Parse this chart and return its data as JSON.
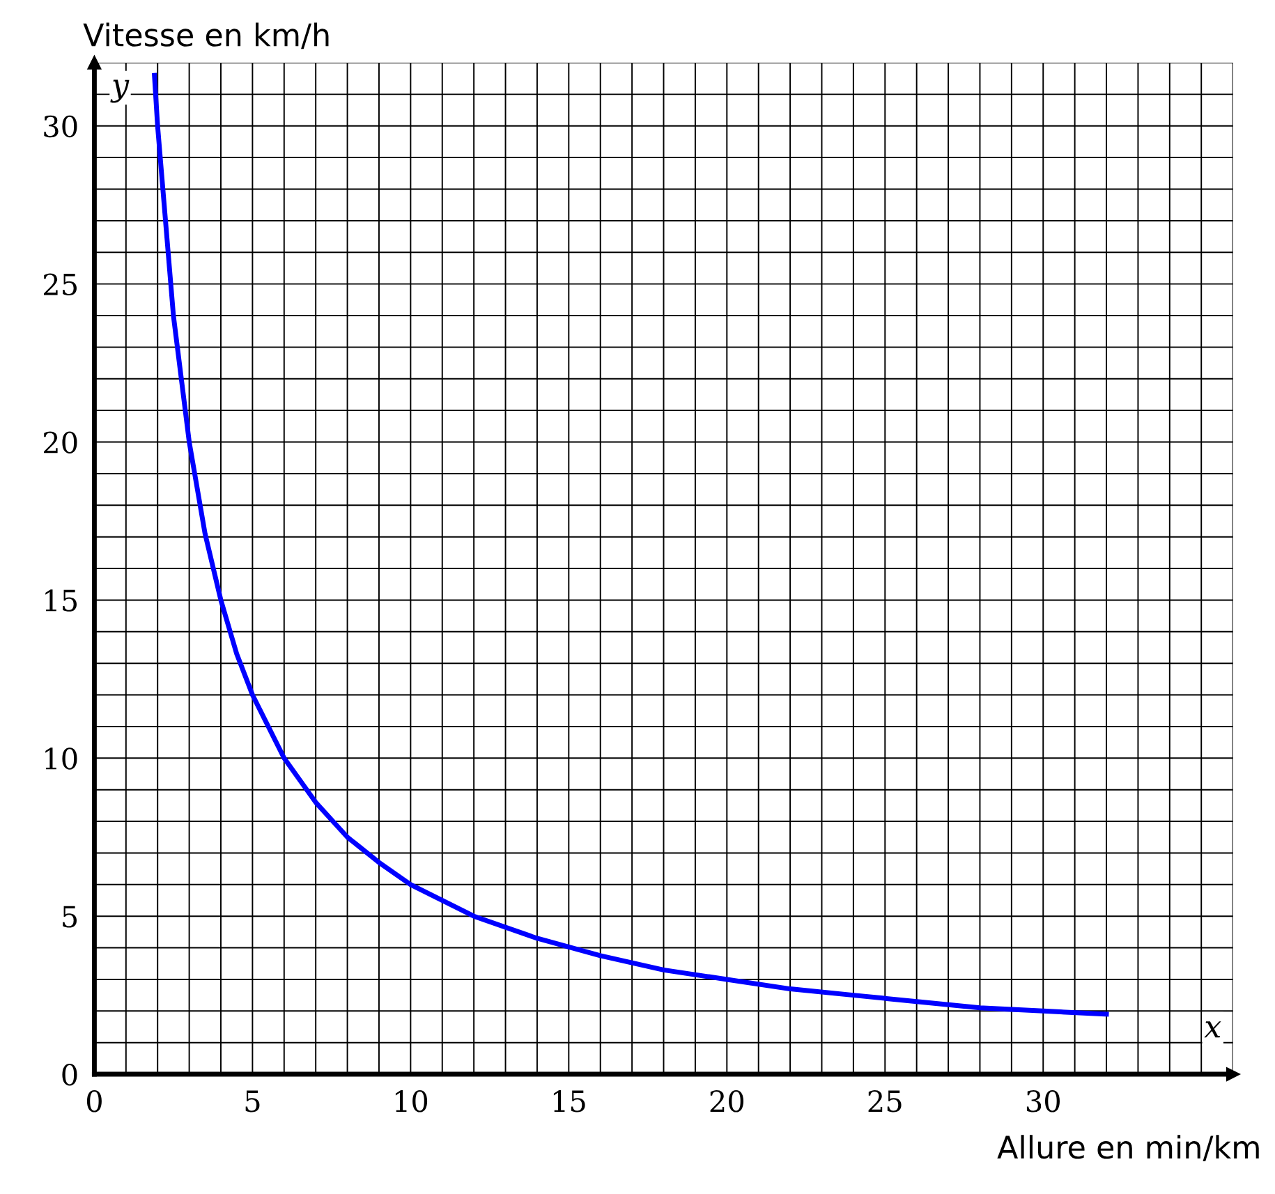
{
  "chart_data": {
    "type": "line",
    "xlabel": "Allure en min/km",
    "ylabel": "Vitesse en km/h",
    "annotations": [
      "x",
      "y"
    ],
    "series": [
      {
        "color": "#0000ff",
        "x": [
          1.9,
          2,
          2.5,
          3,
          3.5,
          4,
          4.5,
          5,
          6,
          7,
          8,
          9,
          10,
          12,
          14,
          16,
          18,
          20,
          22,
          24,
          26,
          28,
          30,
          32
        ],
        "values": [
          31.6,
          30,
          24,
          20,
          17.1,
          15,
          13.3,
          12,
          10,
          8.6,
          7.5,
          6.7,
          6,
          5,
          4.3,
          3.75,
          3.3,
          3,
          2.7,
          2.5,
          2.3,
          2.1,
          2,
          1.9
        ]
      }
    ],
    "xlim": [
      0,
      36
    ],
    "ylim": [
      0,
      32
    ],
    "xticks": [
      0,
      {
        "value": 1,
        "label": null
      },
      {
        "value": 2,
        "label": null
      },
      {
        "value": 3,
        "label": null
      },
      {
        "value": 4,
        "label": null
      },
      5,
      {
        "value": 6,
        "label": null
      },
      {
        "value": 7,
        "label": null
      },
      {
        "value": 8,
        "label": null
      },
      {
        "value": 9,
        "label": null
      },
      10,
      {
        "value": 11,
        "label": null
      },
      {
        "value": 12,
        "label": null
      },
      {
        "value": 13,
        "label": null
      },
      {
        "value": 14,
        "label": null
      },
      15,
      {
        "value": 16,
        "label": null
      },
      {
        "value": 17,
        "label": null
      },
      {
        "value": 18,
        "label": null
      },
      {
        "value": 19,
        "label": null
      },
      20,
      {
        "value": 21,
        "label": null
      },
      {
        "value": 22,
        "label": null
      },
      {
        "value": 23,
        "label": null
      },
      {
        "value": 24,
        "label": null
      },
      25,
      {
        "value": 26,
        "label": null
      },
      {
        "value": 27,
        "label": null
      },
      {
        "value": 28,
        "label": null
      },
      {
        "value": 29,
        "label": null
      },
      30,
      {
        "value": 31,
        "label": null
      },
      {
        "value": 32,
        "label": null
      },
      {
        "value": 33,
        "label": null
      },
      {
        "value": 34,
        "label": null
      },
      {
        "value": 35,
        "label": null
      },
      {
        "value": 36,
        "label": null
      }
    ],
    "yticks": [
      0,
      {
        "value": 1,
        "label": null
      },
      {
        "value": 2,
        "label": null
      },
      {
        "value": 3,
        "label": null
      },
      {
        "value": 4,
        "label": null
      },
      5,
      {
        "value": 6,
        "label": null
      },
      {
        "value": 7,
        "label": null
      },
      {
        "value": 8,
        "label": null
      },
      {
        "value": 9,
        "label": null
      },
      10,
      {
        "value": 11,
        "label": null
      },
      {
        "value": 12,
        "label": null
      },
      {
        "value": 13,
        "label": null
      },
      {
        "value": 14,
        "label": null
      },
      15,
      {
        "value": 16,
        "label": null
      },
      {
        "value": 17,
        "label": null
      },
      {
        "value": 18,
        "label": null
      },
      {
        "value": 19,
        "label": null
      },
      20,
      {
        "value": 21,
        "label": null
      },
      {
        "value": 22,
        "label": null
      },
      {
        "value": 23,
        "label": null
      },
      {
        "value": 24,
        "label": null
      },
      25,
      {
        "value": 26,
        "label": null
      },
      {
        "value": 27,
        "label": null
      },
      {
        "value": 28,
        "label": null
      },
      {
        "value": 29,
        "label": null
      },
      30,
      {
        "value": 31,
        "label": null
      },
      {
        "value": 32,
        "label": null
      }
    ],
    "grid": true,
    "legend": false,
    "marker": "none",
    "line_style": "solid"
  }
}
